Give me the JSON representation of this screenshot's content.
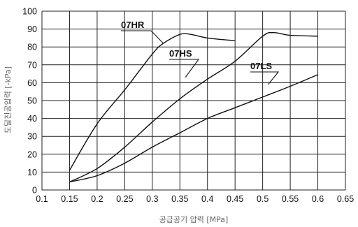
{
  "chart_data": {
    "type": "line",
    "xlabel": "공급공기 압력 [MPa]",
    "ylabel": "도달진공압력 [-kPa]",
    "xlim": [
      0.1,
      0.65
    ],
    "ylim": [
      0,
      100
    ],
    "x_ticks": [
      "0.1",
      "0.15",
      "0.2",
      "0.25",
      "0.3",
      "0.35",
      "0.4",
      "0.45",
      "0.5",
      "0.55",
      "0.6",
      "0.65"
    ],
    "y_ticks": [
      "0",
      "10",
      "20",
      "30",
      "40",
      "50",
      "60",
      "70",
      "80",
      "90",
      "100"
    ],
    "grid": true,
    "series": [
      {
        "name": "07HR",
        "x": [
          0.15,
          0.2,
          0.25,
          0.3,
          0.32,
          0.35,
          0.37,
          0.4,
          0.45
        ],
        "y": [
          11,
          37,
          56,
          76,
          82,
          87,
          87,
          85,
          83.5
        ]
      },
      {
        "name": "07HS",
        "x": [
          0.15,
          0.2,
          0.25,
          0.3,
          0.35,
          0.4,
          0.45,
          0.5,
          0.52,
          0.55,
          0.6
        ],
        "y": [
          4.5,
          12,
          24,
          38,
          51,
          62,
          72,
          86,
          88,
          86.5,
          86
        ]
      },
      {
        "name": "07LS",
        "x": [
          0.15,
          0.2,
          0.25,
          0.3,
          0.35,
          0.4,
          0.45,
          0.5,
          0.55,
          0.6
        ],
        "y": [
          4.5,
          8,
          15,
          24,
          32,
          40,
          46,
          52,
          58,
          64.5
        ]
      }
    ]
  }
}
